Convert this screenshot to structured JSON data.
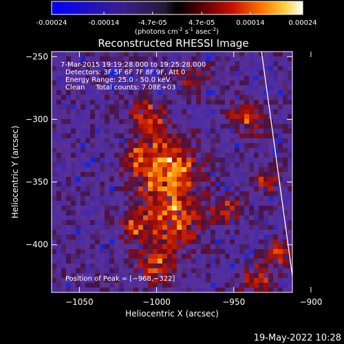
{
  "colorbar": {
    "ticks": [
      "-0.00024",
      "-0.00014",
      "-4.7e-05",
      "4.7e-05",
      "0.00014",
      "0.00024"
    ],
    "tick_values": [
      -0.00024,
      -0.00014,
      -4.7e-05,
      4.7e-05,
      0.00014,
      0.00024
    ],
    "range": [
      -0.00024,
      0.00024
    ],
    "units_base": "(photons cm",
    "units_exp1": "-2",
    "units_mid": " s",
    "units_exp2": "-1",
    "units_mid2": " asec",
    "units_exp3": "-2",
    "units_end": ")"
  },
  "chart_data": {
    "type": "heatmap",
    "title": "Reconstructed RHESSI Image",
    "xlabel": "Heliocentric X (arcsec)",
    "ylabel": "Heliocentric Y (arcsec)",
    "xlim": [
      -1068,
      -912
    ],
    "ylim": [
      -438,
      -246
    ],
    "xticks": [
      -1050,
      -1000,
      -950,
      -900
    ],
    "xtick_labels": [
      "−1050",
      "−1000",
      "−950",
      "−900"
    ],
    "yticks": [
      -250,
      -300,
      -350,
      -400
    ],
    "ytick_labels": [
      "−250",
      "−300",
      "−350",
      "−400"
    ],
    "peak": [
      -968,
      -322
    ],
    "info_lines": [
      "7-Mar-2015 19:19:28.000 to 19:25:28.000",
      "Detectors: 3F 5F 6F 7F 8F 9F, Att 0",
      "Energy Range: 25.0 - 50.0 keV",
      "Clean     Total counts: 7.08E+03"
    ],
    "peak_label": "Position of Peak = [−968,−322]",
    "limb": {
      "x_at_top": -932,
      "y_at_right": -425
    }
  },
  "footer": {
    "timestamp": "19-May-2022 10:28"
  }
}
